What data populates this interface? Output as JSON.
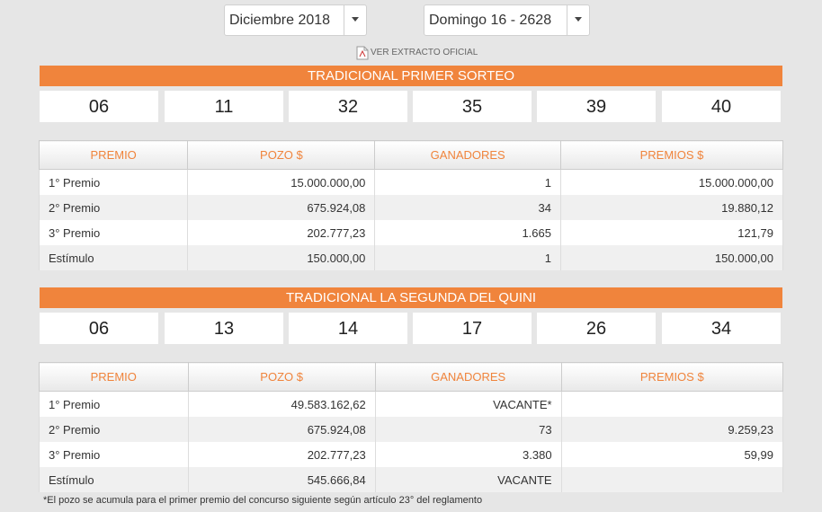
{
  "selects": [
    "Diciembre 2018",
    "Domingo 16 - 2628"
  ],
  "link": "VER EXTRACTO OFICIAL",
  "sections": [
    {
      "title": "TRADICIONAL PRIMER SORTEO",
      "numbers": [
        "06",
        "11",
        "32",
        "35",
        "39",
        "40"
      ],
      "table": {
        "header": [
          "PREMIO",
          "POZO $",
          "GANADORES",
          "PREMIOS $"
        ],
        "rows": [
          [
            "1° Premio",
            "15.000.000,00",
            "1",
            "15.000.000,00"
          ],
          [
            "2° Premio",
            "675.924,08",
            "34",
            "19.880,12"
          ],
          [
            "3° Premio",
            "202.777,23",
            "1.665",
            "121,79"
          ],
          [
            "Estímulo",
            "150.000,00",
            "1",
            "150.000,00"
          ]
        ]
      }
    },
    {
      "title": "TRADICIONAL LA SEGUNDA DEL QUINI",
      "numbers": [
        "06",
        "13",
        "14",
        "17",
        "26",
        "34"
      ],
      "table": {
        "header": [
          "PREMIO",
          "POZO $",
          "GANADORES",
          "PREMIOS $"
        ],
        "rows": [
          [
            "1° Premio",
            "49.583.162,62",
            "VACANTE*",
            null
          ],
          [
            "2° Premio",
            "675.924,08",
            "73",
            "9.259,23"
          ],
          [
            "3° Premio",
            "202.777,23",
            "3.380",
            "59,99"
          ],
          [
            "Estímulo",
            "545.666,84",
            "VACANTE",
            null
          ]
        ]
      }
    }
  ],
  "footnote": "*El pozo se acumula para el primer premio del concurso siguiente según artículo 23° del reglamento"
}
